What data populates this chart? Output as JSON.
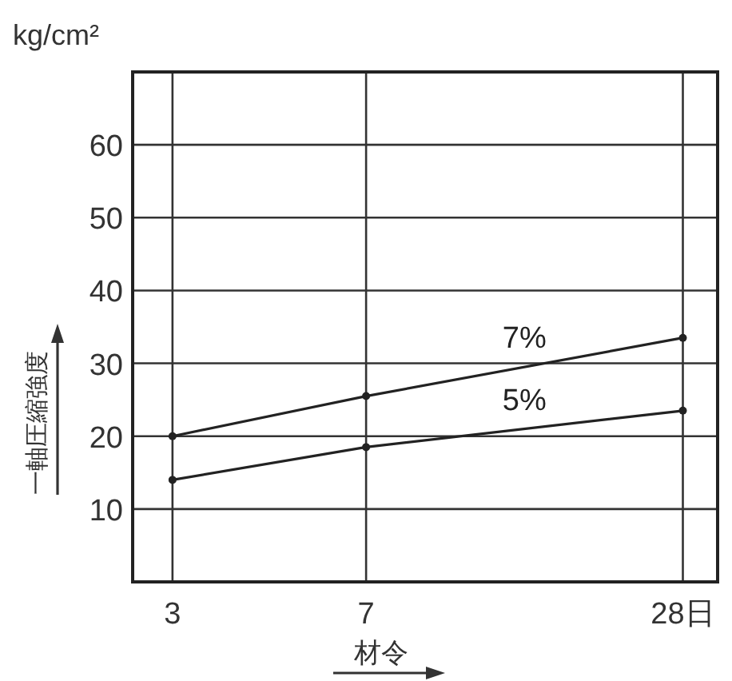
{
  "chart_data": {
    "type": "line",
    "x": [
      3,
      7,
      28
    ],
    "log": "x",
    "xlim": [
      2.52,
      32.6
    ],
    "xticks": [
      3,
      7,
      {
        "value": 28,
        "label": "28日"
      }
    ],
    "ylim": [
      0,
      70
    ],
    "yticks": [
      10,
      20,
      30,
      40,
      50,
      60
    ],
    "grid": true,
    "marker": "circle",
    "line_style": "solid",
    "xlabel": "材令",
    "ylabel": "一軸圧縮強度",
    "annotations": [
      "kg/cm²"
    ],
    "series": [
      {
        "name": "7%",
        "color": "#222222",
        "values": [
          20,
          25.5,
          33.5
        ]
      },
      {
        "name": "5%",
        "color": "#222222",
        "values": [
          14,
          18.5,
          23.5
        ]
      }
    ]
  }
}
